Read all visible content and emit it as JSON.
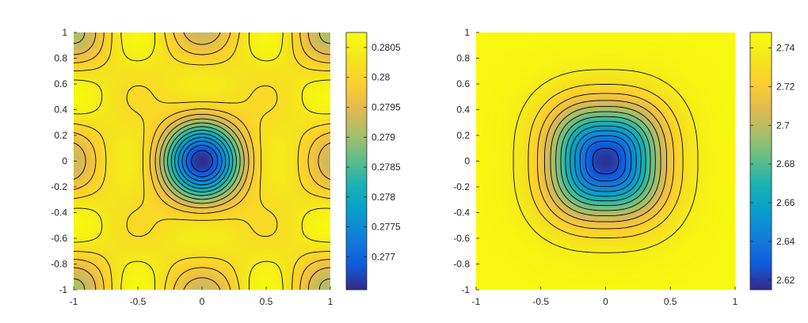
{
  "chart_data": [
    {
      "type": "heatmap",
      "title": "",
      "xlabel": "",
      "ylabel": "",
      "xlim": [
        -1,
        1
      ],
      "ylim": [
        -1,
        1
      ],
      "x_ticks": [
        -1,
        -0.5,
        0,
        0.5,
        1
      ],
      "x_tick_labels": [
        "-1",
        "-0.5",
        "0",
        "0.5",
        "1"
      ],
      "y_ticks": [
        1,
        0.8,
        0.6,
        0.4,
        0.2,
        0,
        -0.2,
        -0.4,
        -0.6,
        -0.8,
        -1
      ],
      "y_tick_labels": [
        "1",
        "0.8",
        "0.6",
        "0.4",
        "0.2",
        "0",
        "-0.2",
        "-0.4",
        "-0.6",
        "-0.8",
        "-1"
      ],
      "colormap": "parula",
      "contour_lines": true,
      "colorbar": {
        "range": [
          0.27645,
          0.28075
        ],
        "ticks": [
          0.2805,
          0.28,
          0.2795,
          0.279,
          0.2785,
          0.278,
          0.2775,
          0.277
        ],
        "tick_labels": [
          "0.2805",
          "0.28",
          "0.2795",
          "0.279",
          "0.2785",
          "0.278",
          "0.2775",
          "0.277"
        ]
      },
      "field": {
        "center_value": 0.27648,
        "plateau_value": 0.2801,
        "max_value": 0.2807,
        "corner_value": 0.2791,
        "description_points": [
          {
            "x": 0,
            "y": 0,
            "value": 0.27648
          },
          {
            "x": 0.8,
            "y": 0,
            "value": 0.2807
          },
          {
            "x": 0,
            "y": 0.8,
            "value": 0.2807
          },
          {
            "x": 0.5,
            "y": 0.5,
            "value": 0.28
          },
          {
            "x": 1,
            "y": 1,
            "value": 0.2791
          }
        ]
      }
    },
    {
      "type": "heatmap",
      "title": "",
      "xlabel": "",
      "ylabel": "",
      "xlim": [
        -1,
        1
      ],
      "ylim": [
        -1,
        1
      ],
      "x_ticks": [
        -1,
        -0.5,
        0,
        0.5,
        1
      ],
      "x_tick_labels": [
        "-1",
        "-0.5",
        "0",
        "0.5",
        "1"
      ],
      "y_ticks": [
        1,
        0.8,
        0.6,
        0.4,
        0.2,
        0,
        -0.2,
        -0.4,
        -0.6,
        -0.8,
        -1
      ],
      "y_tick_labels": [
        "1",
        "0.8",
        "0.6",
        "0.4",
        "0.2",
        "0",
        "-0.2",
        "-0.4",
        "-0.6",
        "-0.8",
        "-1"
      ],
      "colormap": "parula",
      "contour_lines": true,
      "colorbar": {
        "range": [
          2.615,
          2.748
        ],
        "ticks": [
          2.74,
          2.72,
          2.7,
          2.68,
          2.66,
          2.64,
          2.62
        ],
        "tick_labels": [
          "2.74",
          "2.72",
          "2.7",
          "2.68",
          "2.66",
          "2.64",
          "2.62"
        ]
      },
      "field": {
        "center_value": 2.617,
        "plateau_value": 2.742,
        "max_value": 2.746,
        "description_points": [
          {
            "x": 0,
            "y": 0,
            "value": 2.617
          },
          {
            "x": 0.5,
            "y": 0,
            "value": 2.705
          },
          {
            "x": 0.9,
            "y": 0,
            "value": 2.743
          },
          {
            "x": 1,
            "y": 1,
            "value": 2.745
          }
        ]
      }
    }
  ]
}
